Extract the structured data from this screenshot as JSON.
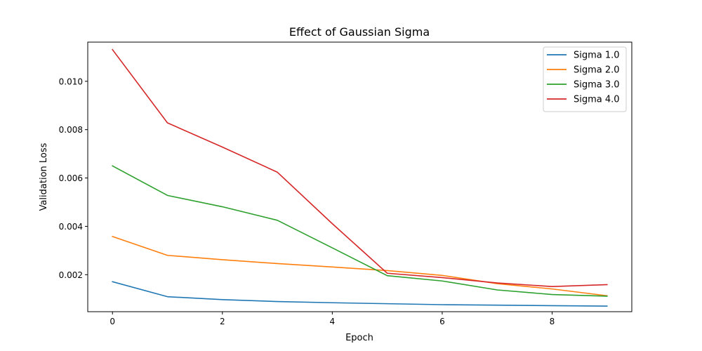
{
  "chart_data": {
    "type": "line",
    "title": "Effect of Gaussian Sigma",
    "xlabel": "Epoch",
    "ylabel": "Validation Loss",
    "x": [
      0,
      1,
      2,
      3,
      4,
      5,
      6,
      7,
      8,
      9
    ],
    "xlim": [
      -0.45,
      9.45
    ],
    "ylim": [
      0.00047,
      0.01162
    ],
    "xticks": [
      0,
      2,
      4,
      6,
      8
    ],
    "xtick_labels": [
      "0",
      "2",
      "4",
      "6",
      "8"
    ],
    "yticks": [
      0.002,
      0.004,
      0.006,
      0.008,
      0.01
    ],
    "ytick_labels": [
      "0.002",
      "0.004",
      "0.006",
      "0.008",
      "0.010"
    ],
    "grid": false,
    "legend_position": "top-right",
    "series": [
      {
        "name": "Sigma 1.0",
        "color": "#1f77b4",
        "values": [
          0.00171,
          0.00109,
          0.00097,
          0.00089,
          0.00084,
          0.0008,
          0.00076,
          0.00074,
          0.00072,
          0.0007
        ]
      },
      {
        "name": "Sigma 2.0",
        "color": "#ff7f0e",
        "values": [
          0.00358,
          0.0028,
          0.00262,
          0.00246,
          0.00232,
          0.00217,
          0.00197,
          0.00163,
          0.00141,
          0.00113
        ]
      },
      {
        "name": "Sigma 3.0",
        "color": "#2ca02c",
        "values": [
          0.0065,
          0.00528,
          0.00481,
          0.00425,
          0.00311,
          0.00196,
          0.00174,
          0.00137,
          0.00118,
          0.00111
        ]
      },
      {
        "name": "Sigma 4.0",
        "color": "#d62728",
        "values": [
          0.01131,
          0.00828,
          0.00728,
          0.00624,
          0.00411,
          0.00206,
          0.00188,
          0.00166,
          0.00151,
          0.00159
        ]
      }
    ]
  }
}
